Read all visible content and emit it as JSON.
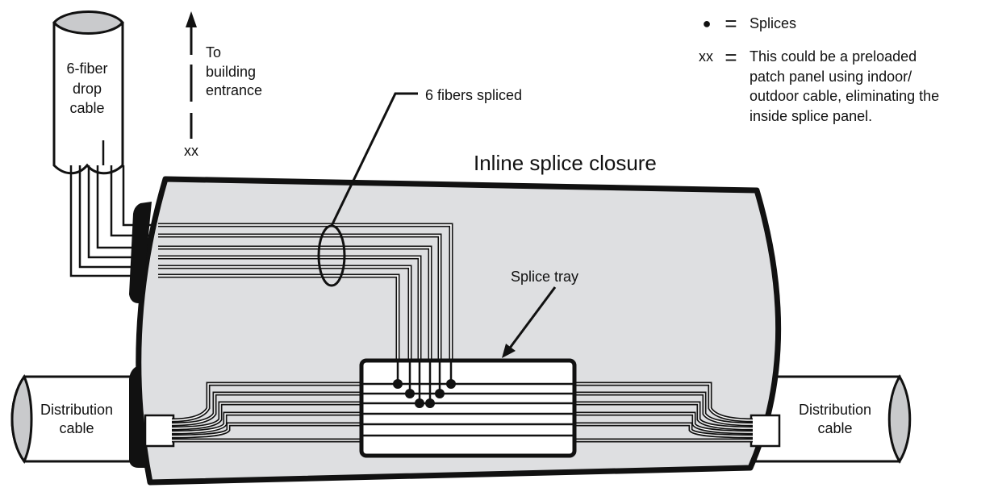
{
  "legend": {
    "splices_symbol": "●",
    "equals": "=",
    "splices_label": "Splices",
    "xx_symbol": "xx",
    "xx_line1": "This could be a preloaded",
    "xx_line2": "patch panel using indoor/",
    "xx_line3": "outdoor cable, eliminating the",
    "xx_line4": "inside splice panel."
  },
  "drop_cable": {
    "line1": "6-fiber",
    "line2": "drop",
    "line3": "cable"
  },
  "building_entrance": {
    "line1": "To",
    "line2": "building",
    "line3": "entrance",
    "marker": "xx"
  },
  "callouts": {
    "fibers_spliced": "6 fibers spliced",
    "closure_title": "Inline splice closure",
    "splice_tray": "Splice tray"
  },
  "distribution_left": {
    "line1": "Distribution",
    "line2": "cable"
  },
  "distribution_right": {
    "line1": "Distribution",
    "line2": "cable"
  },
  "colors": {
    "closure_fill": "#dedfe1",
    "cable_end_fill": "#c9cacc",
    "stroke": "#111111",
    "fiber_fill": "#ffffff"
  }
}
